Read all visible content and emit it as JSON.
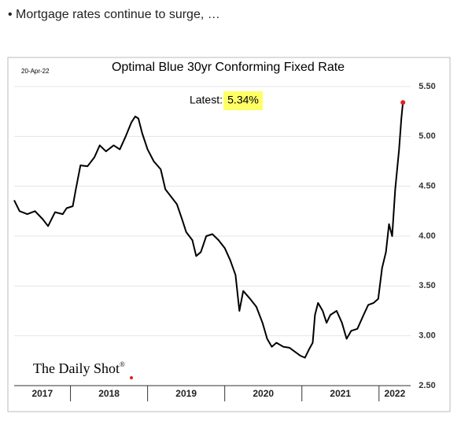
{
  "bullet": "Mortgage rates continue to surge, …",
  "chart_data": {
    "type": "line",
    "title": "Optimal Blue 30yr Conforming Fixed Rate",
    "date": "20-Apr-22",
    "annotation": "Latest:",
    "latest_label": "5.34%",
    "source": "The Daily Shot",
    "source_mark": "®",
    "color": "#000000",
    "end_marker_color": "#e02020",
    "xlim": [
      2017.27,
      2022.41
    ],
    "xticks": [
      2018,
      2019,
      2020,
      2021,
      2022
    ],
    "x_labels": [
      "2017",
      "2018",
      "2019",
      "2020",
      "2021",
      "2022"
    ],
    "ylim": [
      2.5,
      5.5
    ],
    "yticks": [
      {
        "value": 2.5,
        "label": "2.50"
      },
      {
        "value": 3,
        "label": "3.00"
      },
      {
        "value": 3.5,
        "label": "3.50"
      },
      {
        "value": 4,
        "label": "4.00"
      },
      {
        "value": 4.5,
        "label": "4.50"
      },
      {
        "value": 5,
        "label": "5.00"
      },
      {
        "value": 5.5,
        "label": "5.50"
      }
    ],
    "x": [
      2017.27,
      2017.34,
      2017.44,
      2017.54,
      2017.64,
      2017.71,
      2017.8,
      2017.9,
      2017.95,
      2018.03,
      2018.07,
      2018.13,
      2018.22,
      2018.31,
      2018.38,
      2018.46,
      2018.56,
      2018.64,
      2018.71,
      2018.79,
      2018.84,
      2018.88,
      2018.93,
      2019.0,
      2019.08,
      2019.17,
      2019.23,
      2019.31,
      2019.38,
      2019.45,
      2019.5,
      2019.58,
      2019.63,
      2019.69,
      2019.76,
      2019.84,
      2019.92,
      2020.0,
      2020.07,
      2020.14,
      2020.19,
      2020.24,
      2020.33,
      2020.41,
      2020.49,
      2020.55,
      2020.61,
      2020.67,
      2020.76,
      2020.84,
      2020.91,
      2020.98,
      2021.04,
      2021.09,
      2021.14,
      2021.17,
      2021.21,
      2021.27,
      2021.32,
      2021.37,
      2021.45,
      2021.52,
      2021.58,
      2021.64,
      2021.72,
      2021.8,
      2021.86,
      2021.93,
      2021.99,
      2022.04,
      2022.09,
      2022.13,
      2022.17,
      2022.21,
      2022.26,
      2022.29,
      2022.31
    ],
    "values": [
      4.36,
      4.25,
      4.22,
      4.25,
      4.17,
      4.1,
      4.24,
      4.22,
      4.28,
      4.3,
      4.47,
      4.71,
      4.7,
      4.79,
      4.91,
      4.85,
      4.91,
      4.87,
      4.99,
      5.14,
      5.2,
      5.18,
      5.03,
      4.87,
      4.75,
      4.67,
      4.47,
      4.39,
      4.32,
      4.16,
      4.04,
      3.96,
      3.8,
      3.84,
      4.0,
      4.02,
      3.96,
      3.88,
      3.76,
      3.61,
      3.25,
      3.45,
      3.37,
      3.29,
      3.13,
      2.97,
      2.89,
      2.93,
      2.89,
      2.88,
      2.84,
      2.8,
      2.78,
      2.86,
      2.93,
      3.21,
      3.33,
      3.25,
      3.13,
      3.21,
      3.25,
      3.13,
      2.97,
      3.05,
      3.07,
      3.21,
      3.31,
      3.33,
      3.37,
      3.68,
      3.84,
      4.12,
      4.0,
      4.47,
      4.87,
      5.18,
      5.34
    ]
  }
}
